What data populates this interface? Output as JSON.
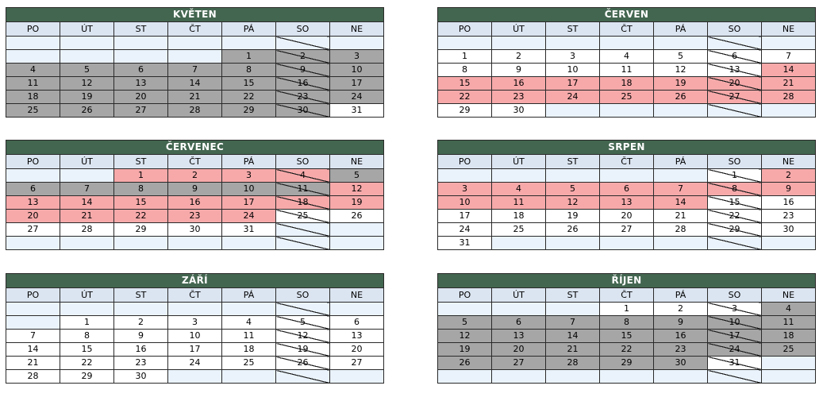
{
  "day_headers": [
    "PO",
    "ÚT",
    "ST",
    "ČT",
    "PÁ",
    "SO",
    "NE"
  ],
  "colors": {
    "header": "#436650",
    "weekday_header": "#dbe5f1",
    "empty": "#eaf3fb",
    "gray": "#a6a6a6",
    "pink": "#f7a9aa",
    "white": "#ffffff"
  },
  "months": [
    {
      "name": "KVĚTEN",
      "weeks": [
        [
          [
            "",
            "e"
          ],
          [
            "",
            "e"
          ],
          [
            "",
            "e"
          ],
          [
            "",
            "e"
          ],
          [
            "",
            "e"
          ],
          [
            "",
            "e"
          ],
          [
            "",
            "e"
          ]
        ],
        [
          [
            "",
            "e"
          ],
          [
            "",
            "e"
          ],
          [
            "",
            "e"
          ],
          [
            "",
            "e"
          ],
          [
            "1",
            "g"
          ],
          [
            "2",
            "g"
          ],
          [
            "3",
            "g"
          ]
        ],
        [
          [
            "4",
            "g"
          ],
          [
            "5",
            "g"
          ],
          [
            "6",
            "g"
          ],
          [
            "7",
            "g"
          ],
          [
            "8",
            "g"
          ],
          [
            "9",
            "g"
          ],
          [
            "10",
            "g"
          ]
        ],
        [
          [
            "11",
            "g"
          ],
          [
            "12",
            "g"
          ],
          [
            "13",
            "g"
          ],
          [
            "14",
            "g"
          ],
          [
            "15",
            "g"
          ],
          [
            "16",
            "g"
          ],
          [
            "17",
            "g"
          ]
        ],
        [
          [
            "18",
            "g"
          ],
          [
            "19",
            "g"
          ],
          [
            "20",
            "g"
          ],
          [
            "21",
            "g"
          ],
          [
            "22",
            "g"
          ],
          [
            "23",
            "g"
          ],
          [
            "24",
            "g"
          ]
        ],
        [
          [
            "25",
            "g"
          ],
          [
            "26",
            "g"
          ],
          [
            "27",
            "g"
          ],
          [
            "28",
            "g"
          ],
          [
            "29",
            "g"
          ],
          [
            "30",
            "g"
          ],
          [
            "31",
            "w"
          ]
        ]
      ]
    },
    {
      "name": "ČERVEN",
      "weeks": [
        [
          [
            "",
            "e"
          ],
          [
            "",
            "e"
          ],
          [
            "",
            "e"
          ],
          [
            "",
            "e"
          ],
          [
            "",
            "e"
          ],
          [
            "",
            "e"
          ],
          [
            "",
            "e"
          ]
        ],
        [
          [
            "1",
            "w"
          ],
          [
            "2",
            "w"
          ],
          [
            "3",
            "w"
          ],
          [
            "4",
            "w"
          ],
          [
            "5",
            "w"
          ],
          [
            "6",
            "w"
          ],
          [
            "7",
            "w"
          ]
        ],
        [
          [
            "8",
            "w"
          ],
          [
            "9",
            "w"
          ],
          [
            "10",
            "w"
          ],
          [
            "11",
            "w"
          ],
          [
            "12",
            "w"
          ],
          [
            "13",
            "w"
          ],
          [
            "14",
            "p"
          ]
        ],
        [
          [
            "15",
            "p"
          ],
          [
            "16",
            "p"
          ],
          [
            "17",
            "p"
          ],
          [
            "18",
            "p"
          ],
          [
            "19",
            "p"
          ],
          [
            "20",
            "p"
          ],
          [
            "21",
            "p"
          ]
        ],
        [
          [
            "22",
            "p"
          ],
          [
            "23",
            "p"
          ],
          [
            "24",
            "p"
          ],
          [
            "25",
            "p"
          ],
          [
            "26",
            "p"
          ],
          [
            "27",
            "p"
          ],
          [
            "28",
            "p"
          ]
        ],
        [
          [
            "29",
            "w"
          ],
          [
            "30",
            "w"
          ],
          [
            "",
            "e"
          ],
          [
            "",
            "e"
          ],
          [
            "",
            "e"
          ],
          [
            "",
            "e"
          ],
          [
            "",
            "e"
          ]
        ]
      ]
    },
    {
      "name": "ČERVENEC",
      "weeks": [
        [
          [
            "",
            "e"
          ],
          [
            "",
            "e"
          ],
          [
            "1",
            "p"
          ],
          [
            "2",
            "p"
          ],
          [
            "3",
            "p"
          ],
          [
            "4",
            "p"
          ],
          [
            "5",
            "g"
          ]
        ],
        [
          [
            "6",
            "g"
          ],
          [
            "7",
            "g"
          ],
          [
            "8",
            "g"
          ],
          [
            "9",
            "g"
          ],
          [
            "10",
            "g"
          ],
          [
            "11",
            "g"
          ],
          [
            "12",
            "p"
          ]
        ],
        [
          [
            "13",
            "p"
          ],
          [
            "14",
            "p"
          ],
          [
            "15",
            "p"
          ],
          [
            "16",
            "p"
          ],
          [
            "17",
            "p"
          ],
          [
            "18",
            "p"
          ],
          [
            "19",
            "p"
          ]
        ],
        [
          [
            "20",
            "p"
          ],
          [
            "21",
            "p"
          ],
          [
            "22",
            "p"
          ],
          [
            "23",
            "p"
          ],
          [
            "24",
            "p"
          ],
          [
            "25",
            "w"
          ],
          [
            "26",
            "w"
          ]
        ],
        [
          [
            "27",
            "w"
          ],
          [
            "28",
            "w"
          ],
          [
            "29",
            "w"
          ],
          [
            "30",
            "w"
          ],
          [
            "31",
            "w"
          ],
          [
            "",
            "e"
          ],
          [
            "",
            "e"
          ]
        ],
        [
          [
            "",
            "e"
          ],
          [
            "",
            "e"
          ],
          [
            "",
            "e"
          ],
          [
            "",
            "e"
          ],
          [
            "",
            "e"
          ],
          [
            "",
            "e"
          ],
          [
            "",
            "e"
          ]
        ]
      ]
    },
    {
      "name": "SRPEN",
      "weeks": [
        [
          [
            "",
            "e"
          ],
          [
            "",
            "e"
          ],
          [
            "",
            "e"
          ],
          [
            "",
            "e"
          ],
          [
            "",
            "e"
          ],
          [
            "1",
            "w"
          ],
          [
            "2",
            "p"
          ]
        ],
        [
          [
            "3",
            "p"
          ],
          [
            "4",
            "p"
          ],
          [
            "5",
            "p"
          ],
          [
            "6",
            "p"
          ],
          [
            "7",
            "p"
          ],
          [
            "8",
            "p"
          ],
          [
            "9",
            "p"
          ]
        ],
        [
          [
            "10",
            "p"
          ],
          [
            "11",
            "p"
          ],
          [
            "12",
            "p"
          ],
          [
            "13",
            "p"
          ],
          [
            "14",
            "p"
          ],
          [
            "15",
            "w"
          ],
          [
            "16",
            "w"
          ]
        ],
        [
          [
            "17",
            "w"
          ],
          [
            "18",
            "w"
          ],
          [
            "19",
            "w"
          ],
          [
            "20",
            "w"
          ],
          [
            "21",
            "w"
          ],
          [
            "22",
            "w"
          ],
          [
            "23",
            "w"
          ]
        ],
        [
          [
            "24",
            "w"
          ],
          [
            "25",
            "w"
          ],
          [
            "26",
            "w"
          ],
          [
            "27",
            "w"
          ],
          [
            "28",
            "w"
          ],
          [
            "29",
            "w"
          ],
          [
            "30",
            "w"
          ]
        ],
        [
          [
            "31",
            "w"
          ],
          [
            "",
            "e"
          ],
          [
            "",
            "e"
          ],
          [
            "",
            "e"
          ],
          [
            "",
            "e"
          ],
          [
            "",
            "e"
          ],
          [
            "",
            "e"
          ]
        ]
      ]
    },
    {
      "name": "ZÁŘÍ",
      "weeks": [
        [
          [
            "",
            "e"
          ],
          [
            "",
            "e"
          ],
          [
            "",
            "e"
          ],
          [
            "",
            "e"
          ],
          [
            "",
            "e"
          ],
          [
            "",
            "e"
          ],
          [
            "",
            "e"
          ]
        ],
        [
          [
            "",
            "e"
          ],
          [
            "1",
            "w"
          ],
          [
            "2",
            "w"
          ],
          [
            "3",
            "w"
          ],
          [
            "4",
            "w"
          ],
          [
            "5",
            "w"
          ],
          [
            "6",
            "w"
          ]
        ],
        [
          [
            "7",
            "w"
          ],
          [
            "8",
            "w"
          ],
          [
            "9",
            "w"
          ],
          [
            "10",
            "w"
          ],
          [
            "11",
            "w"
          ],
          [
            "12",
            "w"
          ],
          [
            "13",
            "w"
          ]
        ],
        [
          [
            "14",
            "w"
          ],
          [
            "15",
            "w"
          ],
          [
            "16",
            "w"
          ],
          [
            "17",
            "w"
          ],
          [
            "18",
            "w"
          ],
          [
            "19",
            "w"
          ],
          [
            "20",
            "w"
          ]
        ],
        [
          [
            "21",
            "w"
          ],
          [
            "22",
            "w"
          ],
          [
            "23",
            "w"
          ],
          [
            "24",
            "w"
          ],
          [
            "25",
            "w"
          ],
          [
            "26",
            "w"
          ],
          [
            "27",
            "w"
          ]
        ],
        [
          [
            "28",
            "w"
          ],
          [
            "29",
            "w"
          ],
          [
            "30",
            "w"
          ],
          [
            "",
            "e"
          ],
          [
            "",
            "e"
          ],
          [
            "",
            "e"
          ],
          [
            "",
            "e"
          ]
        ]
      ]
    },
    {
      "name": "ŘÍJEN",
      "weeks": [
        [
          [
            "",
            "e"
          ],
          [
            "",
            "e"
          ],
          [
            "",
            "e"
          ],
          [
            "1",
            "w"
          ],
          [
            "2",
            "w"
          ],
          [
            "3",
            "w"
          ],
          [
            "4",
            "g"
          ]
        ],
        [
          [
            "5",
            "g"
          ],
          [
            "6",
            "g"
          ],
          [
            "7",
            "g"
          ],
          [
            "8",
            "g"
          ],
          [
            "9",
            "g"
          ],
          [
            "10",
            "g"
          ],
          [
            "11",
            "g"
          ]
        ],
        [
          [
            "12",
            "g"
          ],
          [
            "13",
            "g"
          ],
          [
            "14",
            "g"
          ],
          [
            "15",
            "g"
          ],
          [
            "16",
            "g"
          ],
          [
            "17",
            "g"
          ],
          [
            "18",
            "g"
          ]
        ],
        [
          [
            "19",
            "g"
          ],
          [
            "20",
            "g"
          ],
          [
            "21",
            "g"
          ],
          [
            "22",
            "g"
          ],
          [
            "23",
            "g"
          ],
          [
            "24",
            "g"
          ],
          [
            "25",
            "g"
          ]
        ],
        [
          [
            "26",
            "g"
          ],
          [
            "27",
            "g"
          ],
          [
            "28",
            "g"
          ],
          [
            "29",
            "g"
          ],
          [
            "30",
            "g"
          ],
          [
            "31",
            "w"
          ],
          [
            "",
            "e"
          ]
        ],
        [
          [
            "",
            "e"
          ],
          [
            "",
            "e"
          ],
          [
            "",
            "e"
          ],
          [
            "",
            "e"
          ],
          [
            "",
            "e"
          ],
          [
            "",
            "e"
          ],
          [
            "",
            "e"
          ]
        ]
      ]
    }
  ]
}
